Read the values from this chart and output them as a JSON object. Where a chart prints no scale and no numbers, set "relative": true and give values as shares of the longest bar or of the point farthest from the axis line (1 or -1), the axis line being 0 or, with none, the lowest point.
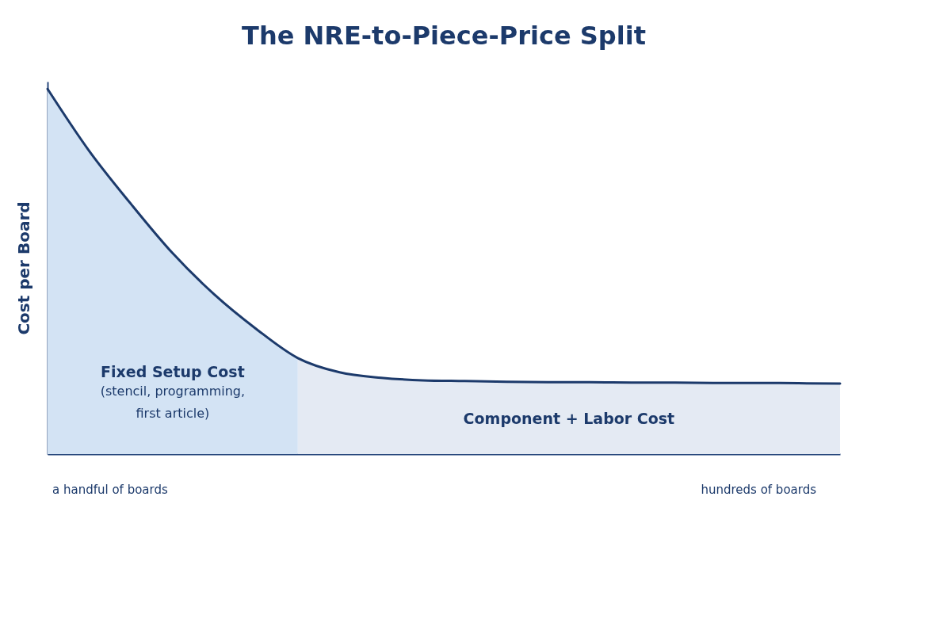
{
  "chart_data": {
    "type": "area",
    "title": "The NRE-to-Piece-Price Split",
    "ylabel": "Cost per Board",
    "relative": true,
    "grid": false,
    "categories": [
      null,
      null,
      null,
      null,
      null,
      null,
      null,
      null,
      null,
      null,
      null,
      null,
      null,
      null,
      null,
      null,
      null,
      null,
      null,
      null
    ],
    "series": [
      {
        "name": "Fixed Setup Cost",
        "color": "#d3e3f4",
        "values": [
          1.0,
          0.83,
          0.685,
          0.55,
          0.437,
          0.343,
          0.263,
          null,
          null,
          null,
          null,
          null,
          null,
          null,
          null,
          null,
          null,
          null,
          null,
          null
        ]
      },
      {
        "name": "Component + Labor Cost",
        "color": "#e4eaf3",
        "values": [
          null,
          null,
          null,
          null,
          null,
          null,
          0.263,
          0.224,
          0.209,
          0.202,
          0.2,
          0.198,
          0.197,
          0.197,
          0.196,
          0.196,
          0.195,
          0.195,
          0.194,
          0.193
        ]
      },
      {
        "type": "line",
        "color": "#1c3a6b",
        "values": [
          1.0,
          0.83,
          0.685,
          0.55,
          0.437,
          0.343,
          0.263,
          0.224,
          0.209,
          0.202,
          0.2,
          0.198,
          0.197,
          0.197,
          0.196,
          0.196,
          0.195,
          0.195,
          0.194,
          0.193
        ]
      }
    ],
    "annotations": [
      "(stencil, programming, first article)",
      "a handful of boards",
      "hundreds of boards"
    ]
  }
}
